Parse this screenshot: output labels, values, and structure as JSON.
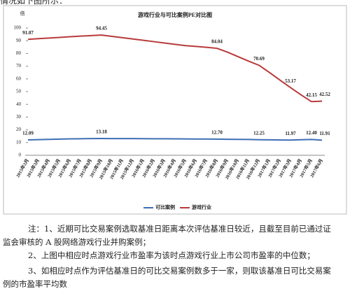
{
  "intro": "情况如下图所示：",
  "chart_data": {
    "type": "line",
    "title": "游戏行业与可比案例PE对比图",
    "y_label": "倍",
    "categories": [
      "2015年2月",
      "2015年3月",
      "2015年4月",
      "2015年5月",
      "2015年6月",
      "2015年7月",
      "2015年8月",
      "2015年9月",
      "2015年10月",
      "2015年11月",
      "2015年12月",
      "2016年1月",
      "2016年2月",
      "2016年3月",
      "2016年4月",
      "2016年5月",
      "2016年6月",
      "2016年7月",
      "2016年8月",
      "2016年9月",
      "2016年10月",
      "2016年11月",
      "2016年12月",
      "2017年1月",
      "2017年2月",
      "2017年3月",
      "2017年4月",
      "2017年5月",
      "2017年6月"
    ],
    "series": [
      {
        "name": "可比案例",
        "color": "#3d6fb5",
        "values": [
          12.09,
          12.3,
          12.5,
          12.7,
          12.9,
          13.0,
          13.1,
          13.18,
          13.15,
          13.1,
          13.1,
          13.05,
          13.0,
          12.95,
          12.9,
          12.85,
          12.8,
          12.75,
          12.7,
          12.6,
          12.5,
          12.4,
          12.25,
          12.15,
          12.05,
          11.97,
          12.2,
          12.4,
          11.91
        ],
        "value_labels": [
          "12.09",
          null,
          null,
          null,
          null,
          null,
          null,
          "13.18",
          null,
          null,
          null,
          null,
          null,
          null,
          null,
          null,
          null,
          null,
          "12.70",
          null,
          null,
          null,
          "12.25",
          null,
          null,
          "11.97",
          null,
          "12.40",
          "11.91"
        ]
      },
      {
        "name": "游戏行业",
        "color": "#b83a3a",
        "values": [
          91.07,
          91.6,
          92.1,
          92.6,
          93.1,
          93.6,
          94.0,
          94.45,
          93.41,
          92.37,
          91.33,
          90.29,
          89.25,
          88.21,
          87.17,
          86.13,
          85.5,
          84.8,
          84.04,
          81.0,
          77.5,
          74.0,
          70.69,
          65.0,
          59.0,
          53.17,
          47.5,
          42.15,
          42.52
        ],
        "value_labels": [
          "91.07",
          null,
          null,
          null,
          null,
          null,
          null,
          "94.45",
          null,
          null,
          null,
          null,
          null,
          null,
          null,
          null,
          null,
          null,
          "84.04",
          null,
          null,
          null,
          "70.69",
          null,
          null,
          "53.17",
          null,
          "42.15",
          "42.52"
        ]
      }
    ],
    "ylim": [
      0,
      100
    ],
    "yticks": [
      0,
      10,
      20,
      30,
      40,
      50,
      60,
      70,
      80,
      90,
      100
    ],
    "grid": false,
    "legend": "bottom"
  },
  "notes": [
    "注：1、近期可比交易案例选取基准日距离本次评估基准日较近，且截至目前已通过证监会审核的 A 股网络游戏行业并购案例；",
    "2、上图中相应时点游戏行业市盈率为该时点游戏行业上市公司市盈率的中位数；",
    "3、如相应时点作为评估基准日的可比交易案例数多于一家，则取该基准日可比交易案例的市盈率平均数"
  ]
}
